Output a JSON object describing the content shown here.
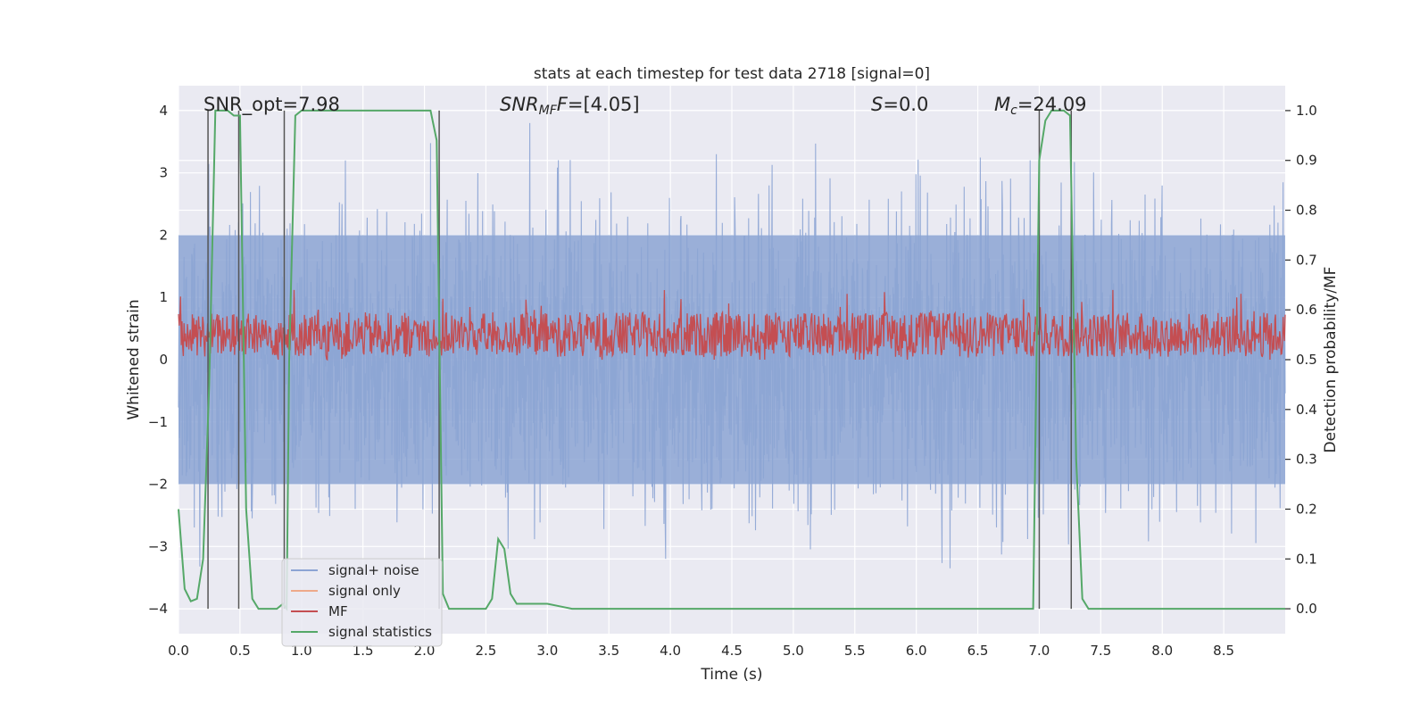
{
  "chart_data": {
    "type": "line",
    "title": "stats at each timestep for test data 2718 [signal=0]",
    "xlabel": "Time (s)",
    "ylabel": "Whitened strain",
    "y2label": "Detection probability/MF",
    "xlim": [
      0,
      9.0
    ],
    "ylim": [
      -4.4,
      4.4
    ],
    "y2lim": [
      -0.05,
      1.05
    ],
    "x_ticks": [
      0.0,
      0.5,
      1.0,
      1.5,
      2.0,
      2.5,
      3.0,
      3.5,
      4.0,
      4.5,
      5.0,
      5.5,
      6.0,
      6.5,
      7.0,
      7.5,
      8.0,
      8.5
    ],
    "x_tick_labels": [
      "0.0",
      "0.5",
      "1.0",
      "1.5",
      "2.0",
      "2.5",
      "3.0",
      "3.5",
      "4.0",
      "4.5",
      "5.0",
      "5.5",
      "6.0",
      "6.5",
      "7.0",
      "7.5",
      "8.0",
      "8.5"
    ],
    "y_ticks": [
      -4,
      -3,
      -2,
      -1,
      0,
      1,
      2,
      3,
      4
    ],
    "y_tick_labels": [
      "−4",
      "−3",
      "−2",
      "−1",
      "0",
      "1",
      "2",
      "3",
      "4"
    ],
    "y2_ticks": [
      0.0,
      0.1,
      0.2,
      0.3,
      0.4,
      0.5,
      0.6,
      0.7,
      0.8,
      0.9,
      1.0
    ],
    "y2_tick_labels": [
      "0.0",
      "0.1",
      "0.2",
      "0.3",
      "0.4",
      "0.5",
      "0.6",
      "0.7",
      "0.8",
      "0.9",
      "1.0"
    ],
    "annotations": {
      "snr_opt": "SNR_opt=7.98",
      "snr_mf_main": "SNR",
      "snr_mf_sub": "MF",
      "snr_mf_tail": "=[4.05]",
      "s_main": "S",
      "s_tail": "=0.0",
      "mc_main": "M",
      "mc_sub": "c",
      "mc_tail": "=24.09"
    },
    "legend": {
      "position": "lower-left",
      "entries": [
        {
          "label": "signal+ noise",
          "color": "#8ca4d4"
        },
        {
          "label": "signal only",
          "color": "#eea98a"
        },
        {
          "label": "MF",
          "color": "#c44e52"
        },
        {
          "label": "signal statistics",
          "color": "#55a868"
        }
      ]
    },
    "series": [
      {
        "name": "signal statistics",
        "axis": "right",
        "color": "#55a868",
        "x": [
          0.0,
          0.05,
          0.1,
          0.15,
          0.2,
          0.25,
          0.3,
          0.35,
          0.4,
          0.45,
          0.5,
          0.55,
          0.6,
          0.65,
          0.7,
          0.75,
          0.8,
          0.85,
          0.88,
          0.9,
          0.95,
          1.0,
          1.5,
          2.0,
          2.05,
          2.1,
          2.15,
          2.2,
          2.25,
          2.3,
          2.4,
          2.5,
          2.55,
          2.6,
          2.65,
          2.7,
          2.75,
          2.8,
          2.85,
          3.0,
          3.1,
          3.2,
          3.3,
          3.5,
          4.0,
          5.0,
          6.0,
          6.5,
          6.95,
          7.0,
          7.05,
          7.1,
          7.2,
          7.25,
          7.3,
          7.35,
          7.4,
          7.5,
          8.0,
          8.5,
          9.0
        ],
        "y": [
          0.2,
          0.04,
          0.015,
          0.02,
          0.1,
          0.45,
          1.0,
          1.0,
          1.0,
          0.99,
          0.99,
          0.2,
          0.02,
          0.0,
          0.0,
          0.0,
          0.0,
          0.01,
          0.0,
          0.5,
          0.99,
          1.0,
          1.0,
          1.0,
          1.0,
          0.94,
          0.03,
          0.0,
          0.0,
          0.0,
          0.0,
          0.0,
          0.02,
          0.14,
          0.12,
          0.03,
          0.01,
          0.01,
          0.01,
          0.01,
          0.005,
          0.0,
          0.0,
          0.0,
          0.0,
          0.0,
          0.0,
          0.0,
          0.0,
          0.9,
          0.98,
          1.0,
          1.0,
          0.99,
          0.3,
          0.02,
          0.0,
          0.0,
          0.0,
          0.0,
          0.0
        ]
      },
      {
        "name": "detection boundaries",
        "axis": "left",
        "color": "#555555",
        "x": [
          0.24,
          0.49,
          0.86,
          2.12,
          7.0,
          7.26
        ],
        "y_range": [
          -4,
          4
        ]
      },
      {
        "name": "signal+ noise",
        "axis": "left",
        "color": "#8ca4d4",
        "description": "dense noise, roughly symmetric, peaks near +3.8 / -3.6"
      },
      {
        "name": "MF",
        "axis": "right",
        "color": "#c44e52",
        "description": "dense fluctuation between 0.5 and ~0.62 on right axis"
      }
    ]
  }
}
